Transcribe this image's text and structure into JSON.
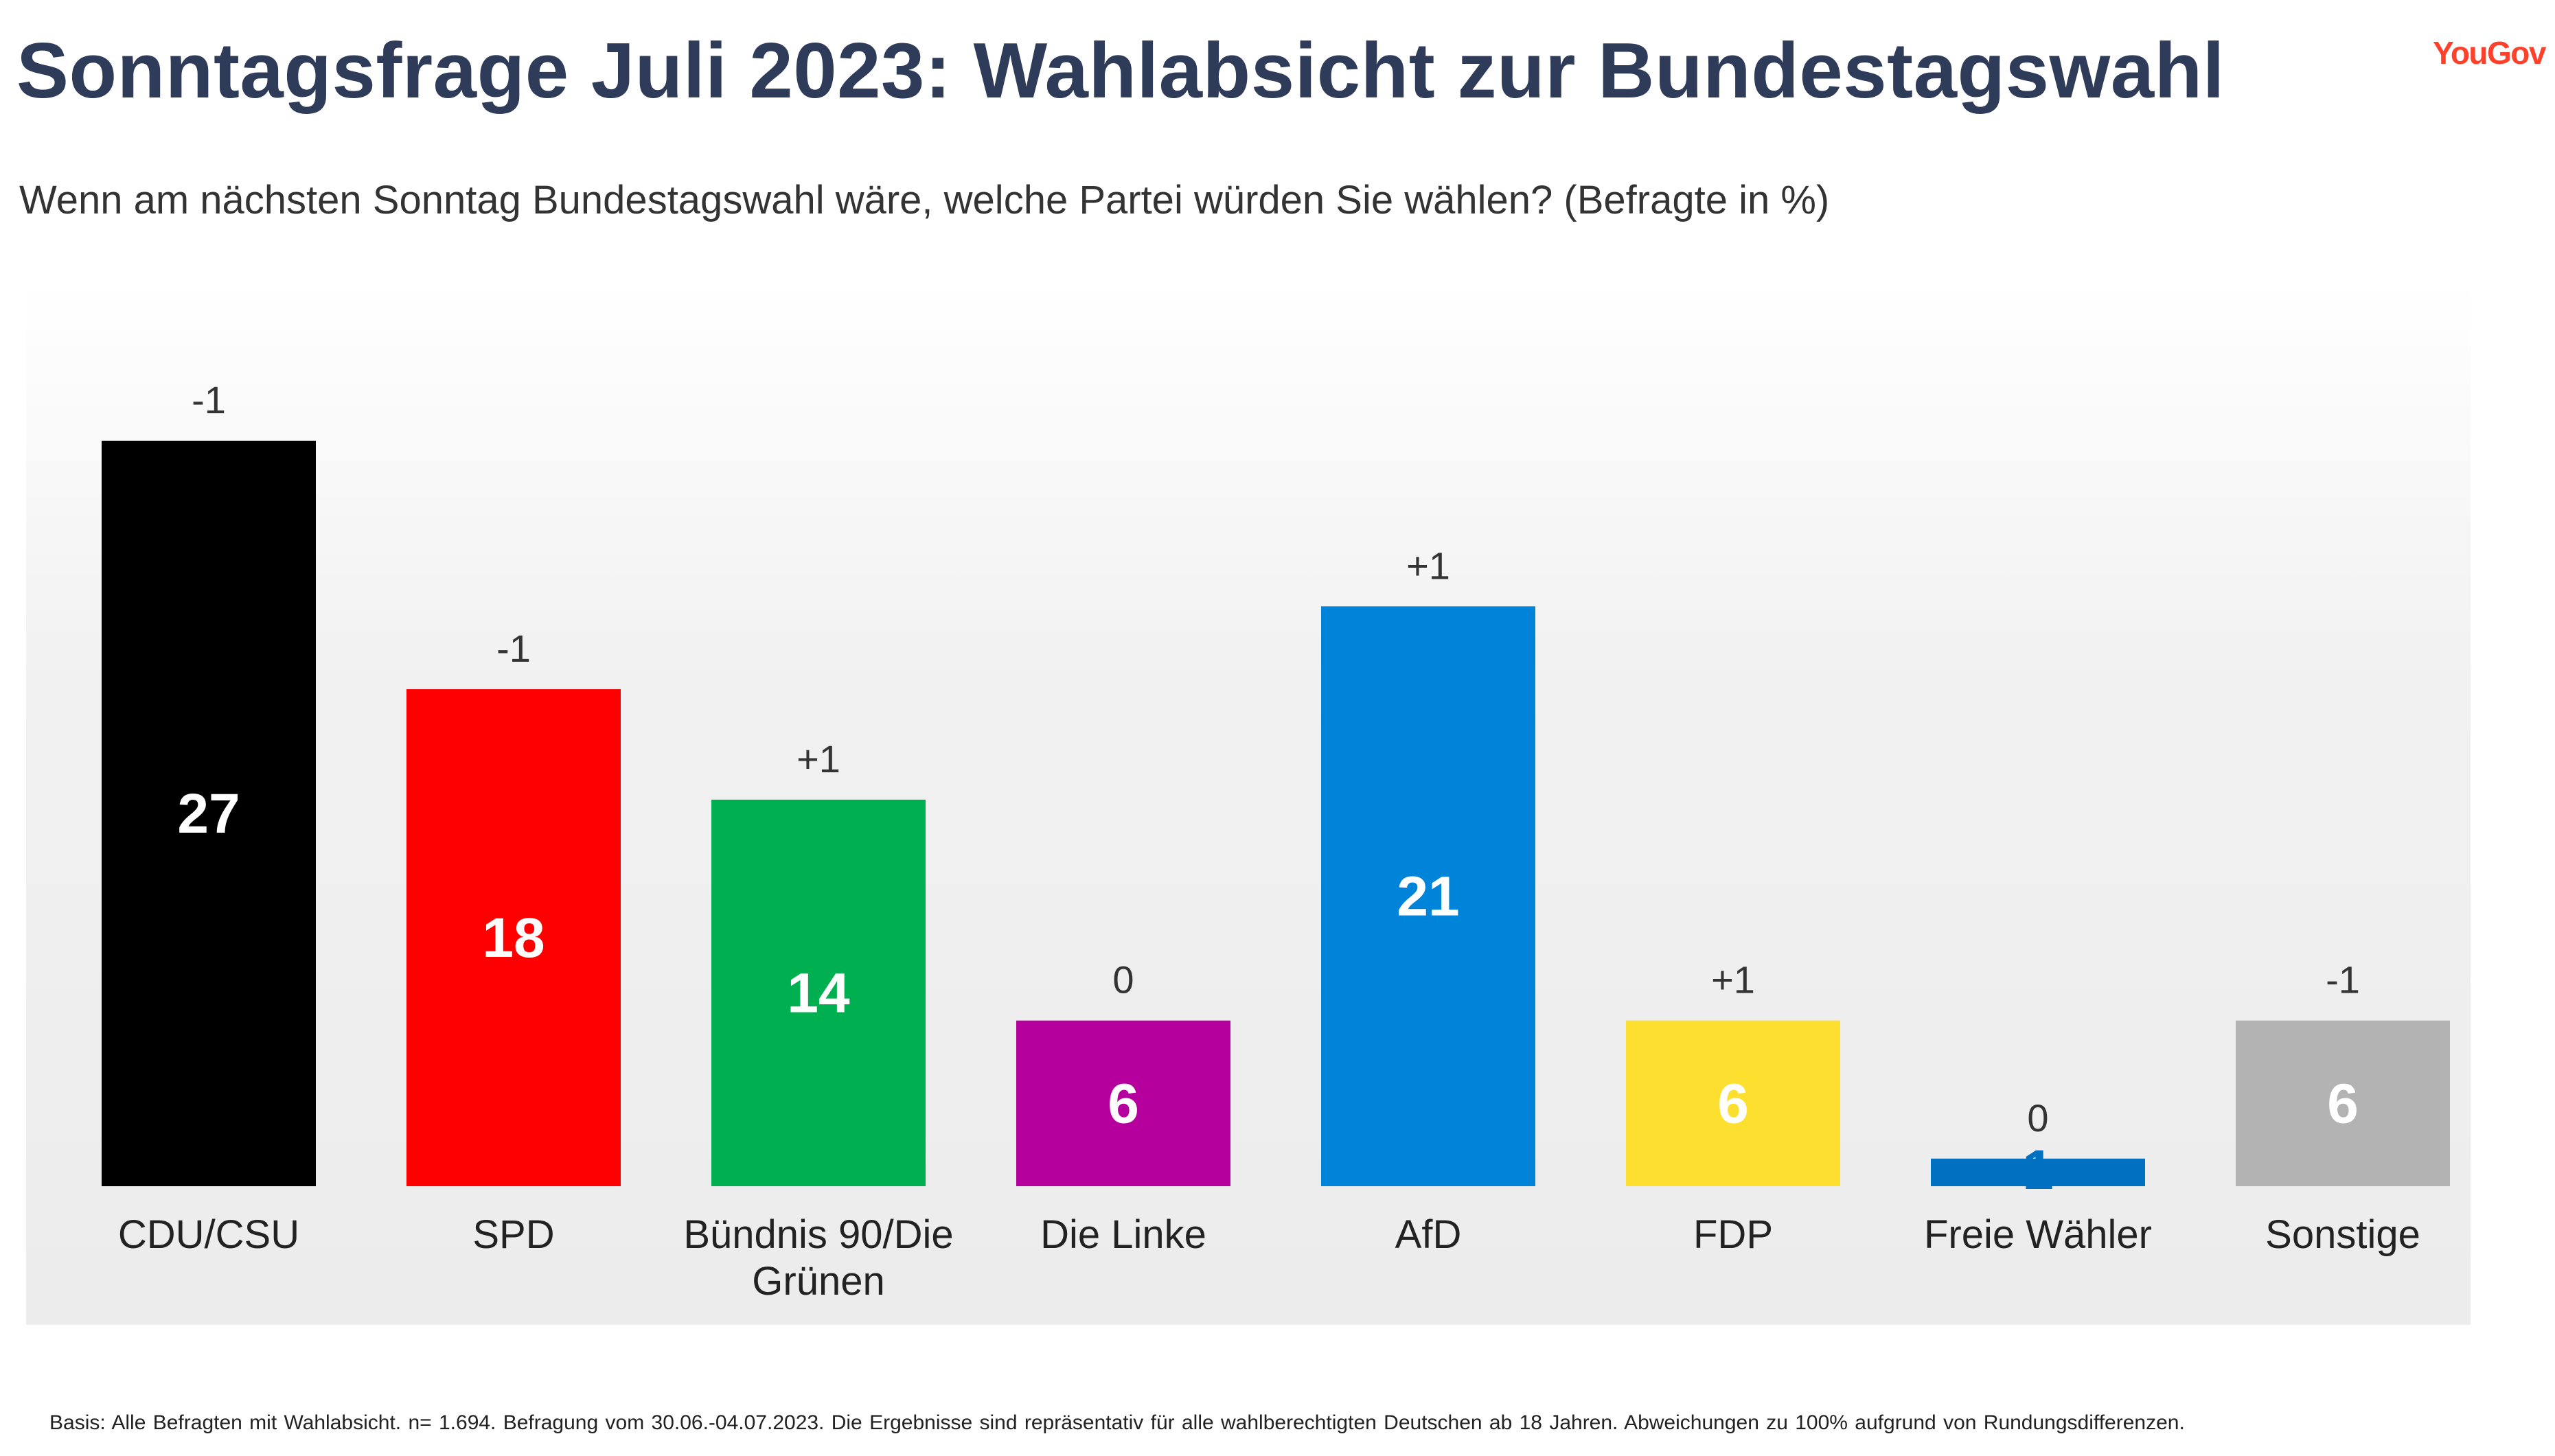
{
  "header": {
    "title": "Sonntagsfrage Juli 2023: Wahlabsicht zur Bundestagswahl",
    "logo": "YouGov",
    "subtitle": "Wenn am nächsten Sonntag Bundestagswahl wäre, welche Partei würden Sie wählen? (Befragte in %)"
  },
  "footer": {
    "note": "Basis: Alle Befragten mit Wahlabsicht. n= 1.694. Befragung vom 30.06.-04.07.2023. Die Ergebnisse sind repräsentativ für alle wahlberechtigten Deutschen ab 18 Jahren. Abweichungen zu 100% aufgrund von Rundungsdifferenzen."
  },
  "chart_data": {
    "type": "bar",
    "title": "Sonntagsfrage Juli 2023: Wahlabsicht zur Bundestagswahl",
    "ylabel": "Befragte in %",
    "ylim": [
      0,
      27
    ],
    "categories": [
      "CDU/CSU",
      "SPD",
      "Bündnis 90/Die Grünen",
      "Die Linke",
      "AfD",
      "FDP",
      "Freie Wähler",
      "Sonstige"
    ],
    "category_lines": [
      [
        "CDU/CSU"
      ],
      [
        "SPD"
      ],
      [
        "Bündnis 90/Die",
        "Grünen"
      ],
      [
        "Die Linke"
      ],
      [
        "AfD"
      ],
      [
        "FDP"
      ],
      [
        "Freie Wähler"
      ],
      [
        "Sonstige"
      ]
    ],
    "values": [
      27,
      18,
      14,
      6,
      21,
      6,
      1,
      6
    ],
    "changes": [
      "-1",
      "-1",
      "+1",
      "0",
      "+1",
      "+1",
      "0",
      "-1"
    ],
    "colors": [
      "#000000",
      "#ff0000",
      "#00b050",
      "#b5009d",
      "#0084da",
      "#fcdf2f",
      "#0070c0",
      "#b3b3b3"
    ],
    "value_label_colors": [
      "#ffffff",
      "#ffffff",
      "#ffffff",
      "#ffffff",
      "#ffffff",
      "#ffffff",
      "#0070c0",
      "#ffffff"
    ]
  }
}
